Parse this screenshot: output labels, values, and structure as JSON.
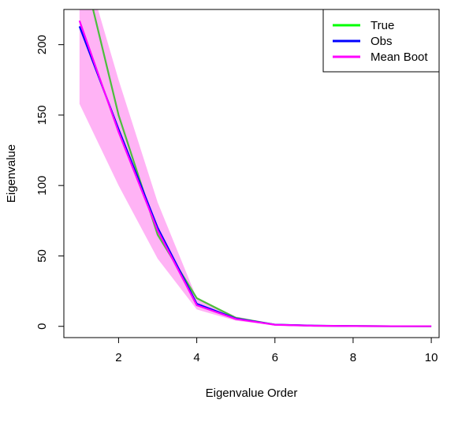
{
  "chart_data": {
    "type": "line",
    "title": "",
    "xlabel": "Eigenvalue Order",
    "ylabel": "Eigenvalue",
    "xlim": [
      0.6,
      10.2
    ],
    "ylim": [
      -8,
      225
    ],
    "x_ticks": [
      2,
      4,
      6,
      8,
      10
    ],
    "y_ticks": [
      0,
      50,
      100,
      150,
      200
    ],
    "grid": false,
    "legend_position": "top-right",
    "x": [
      1,
      2,
      3,
      4,
      5,
      6,
      7,
      8,
      9,
      10
    ],
    "series": [
      {
        "name": "True",
        "color": "#4cbf3c",
        "legend_color": "#00ff00",
        "values": [
          265,
          150,
          65,
          20,
          6,
          1.2,
          0.4,
          0.2,
          0.1,
          0.05
        ]
      },
      {
        "name": "Obs",
        "color": "#0000ff",
        "legend_color": "#0000ff",
        "values": [
          213,
          140,
          70,
          16,
          5.5,
          1.2,
          0.5,
          0.2,
          0.1,
          0.1
        ]
      },
      {
        "name": "Mean Boot",
        "color": "#ff00ff",
        "legend_color": "#ff00ff",
        "values": [
          217,
          138,
          68,
          15,
          5.2,
          1.1,
          0.4,
          0.2,
          0.1,
          0.1
        ]
      }
    ],
    "band": {
      "color": "#ffb3f5",
      "lower": [
        158,
        100,
        48,
        12,
        4,
        0.8,
        0.3,
        0.1,
        0.05,
        0.02
      ],
      "upper": [
        270,
        175,
        88,
        20,
        7,
        1.6,
        0.6,
        0.3,
        0.15,
        0.1
      ]
    }
  }
}
